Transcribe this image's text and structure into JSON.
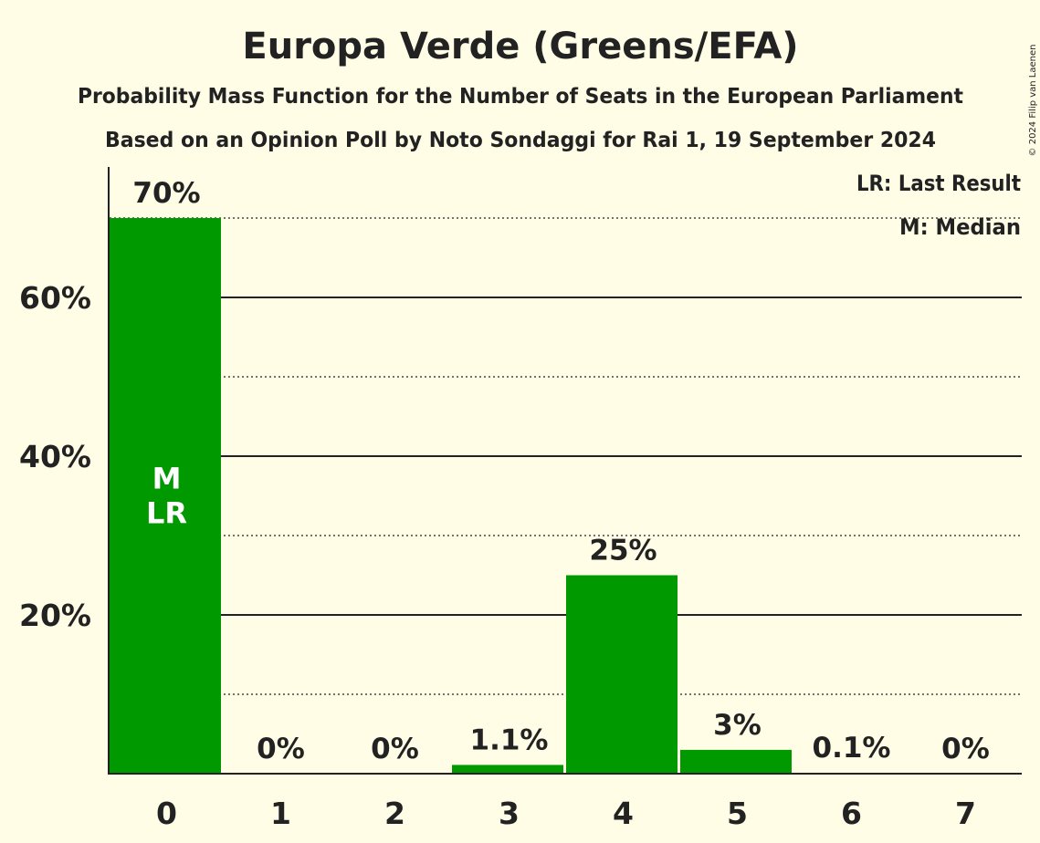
{
  "chart_data": {
    "type": "bar",
    "title": "Europa Verde (Greens/EFA)",
    "subtitle1": "Probability Mass Function for the Number of Seats in the European Parliament",
    "subtitle2": "Based on an Opinion Poll by Noto Sondaggi for Rai 1, 19 September 2024",
    "categories": [
      "0",
      "1",
      "2",
      "3",
      "4",
      "5",
      "6",
      "7"
    ],
    "values": [
      70,
      0,
      0,
      1.1,
      25,
      3,
      0.1,
      0
    ],
    "value_labels": [
      "70%",
      "0%",
      "0%",
      "1.1%",
      "25%",
      "3%",
      "0.1%",
      "0%"
    ],
    "ylim": [
      0,
      76
    ],
    "yticks": [
      {
        "value": 20,
        "label": "20%"
      },
      {
        "value": 40,
        "label": "40%"
      },
      {
        "value": 60,
        "label": "60%"
      }
    ],
    "minor_gridlines": [
      10,
      30,
      50,
      70
    ],
    "bar_annotations": [
      {
        "category": "0",
        "lines": [
          "M",
          "LR"
        ]
      }
    ],
    "legend": {
      "placement": "top-right",
      "entries": [
        "LR: Last Result",
        "M: Median"
      ]
    },
    "copyright": "© 2024 Filip van Laenen",
    "colors": {
      "bar": "#009900",
      "background": "#FFFDE6",
      "text": "#222222",
      "bar_text": "#FFFFFF"
    }
  }
}
